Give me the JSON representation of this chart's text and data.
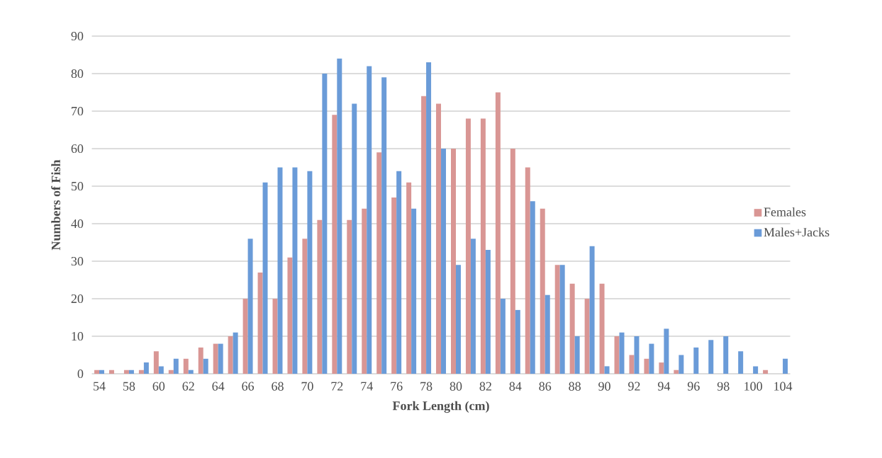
{
  "chart_data": {
    "type": "bar",
    "xlabel": "Fork Length (cm)",
    "ylabel": "Numbers of Fish",
    "categories": [
      "54",
      null,
      "58",
      null,
      "60",
      null,
      "62",
      null,
      "64",
      null,
      "66",
      null,
      "68",
      null,
      "70",
      null,
      "72",
      null,
      "74",
      null,
      "76",
      null,
      "78",
      null,
      "80",
      null,
      "82",
      null,
      "84",
      null,
      "86",
      null,
      "88",
      null,
      "90",
      null,
      "92",
      null,
      "94",
      null,
      "96",
      null,
      "98",
      null,
      "100",
      null,
      "104"
    ],
    "series": [
      {
        "name": "Females",
        "color": "#d99694",
        "values": [
          1,
          1,
          1,
          1,
          6,
          1,
          4,
          7,
          8,
          10,
          20,
          27,
          20,
          31,
          36,
          41,
          69,
          41,
          44,
          59,
          47,
          51,
          74,
          72,
          60,
          68,
          68,
          75,
          60,
          55,
          44,
          29,
          24,
          20,
          24,
          10,
          5,
          4,
          3,
          1,
          null,
          null,
          null,
          null,
          null,
          1,
          null
        ]
      },
      {
        "name": "Males+Jacks",
        "color": "#6a9bd8",
        "values": [
          1,
          null,
          1,
          3,
          2,
          4,
          1,
          4,
          8,
          11,
          36,
          51,
          55,
          55,
          54,
          80,
          84,
          72,
          82,
          79,
          54,
          44,
          83,
          60,
          29,
          36,
          33,
          20,
          17,
          46,
          21,
          29,
          10,
          34,
          2,
          11,
          10,
          8,
          12,
          5,
          7,
          9,
          10,
          6,
          2,
          null,
          4
        ]
      }
    ],
    "ylim": [
      0,
      90
    ],
    "yticks": [
      0,
      10,
      20,
      30,
      40,
      50,
      60,
      70,
      80,
      90
    ],
    "grid": "y",
    "legend": "right"
  }
}
